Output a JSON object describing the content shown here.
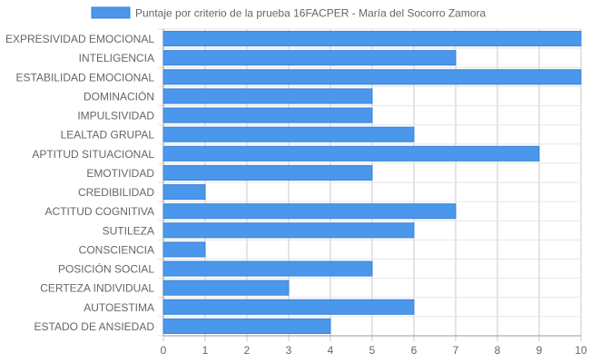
{
  "chart_data": {
    "type": "bar",
    "orientation": "horizontal",
    "categories": [
      "EXPRESIVIDAD EMOCIONAL",
      "INTELIGENCIA",
      "ESTABILIDAD EMOCIONAL",
      "DOMINACIÓN",
      "IMPULSIVIDAD",
      "LEALTAD GRUPAL",
      "APTITUD SITUACIONAL",
      "EMOTIVIDAD",
      "CREDIBILIDAD",
      "ACTITUD COGNITIVA",
      "SUTILEZA",
      "CONSCIENCIA",
      "POSICIÓN SOCIAL",
      "CERTEZA INDIVIDUAL",
      "AUTOESTIMA",
      "ESTADO DE ANSIEDAD"
    ],
    "series": [
      {
        "name": "Puntaje por criterio de la prueba 16FACPER - María del Socorro Zamora",
        "values": [
          10,
          7,
          10,
          5,
          5,
          6,
          9,
          5,
          1,
          7,
          6,
          1,
          5,
          3,
          6,
          4
        ],
        "color": "#4a97eb",
        "border_color": "#3b82db"
      }
    ],
    "xlim": [
      0,
      10
    ],
    "xticks": [
      "0",
      "1",
      "2",
      "3",
      "4",
      "5",
      "6",
      "7",
      "8",
      "9",
      "10"
    ],
    "grid": true,
    "legend_position": "top"
  }
}
